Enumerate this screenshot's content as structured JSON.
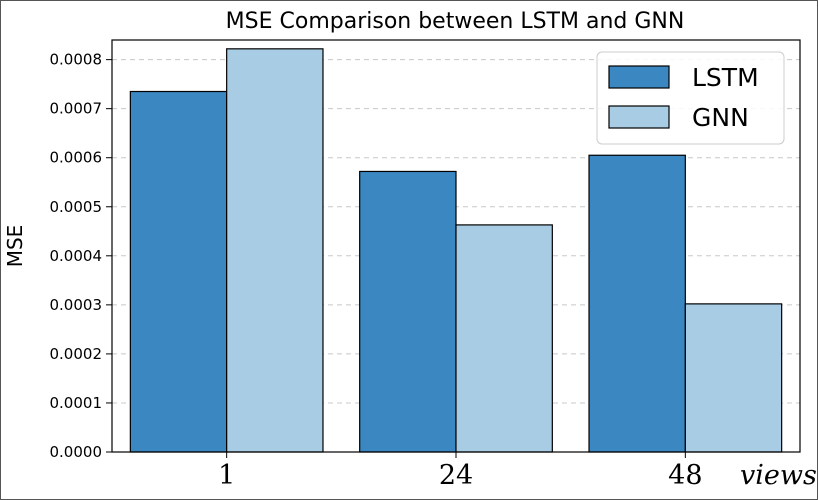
{
  "chart_data": {
    "type": "bar",
    "title": "MSE Comparison between LSTM and GNN",
    "xlabel": "views",
    "ylabel": "MSE",
    "categories": [
      "1",
      "24",
      "48"
    ],
    "series": [
      {
        "name": "LSTM",
        "color": "#3a87c2",
        "values": [
          0.000735,
          0.000572,
          0.000605
        ]
      },
      {
        "name": "GNN",
        "color": "#a8cce4",
        "values": [
          0.000822,
          0.000463,
          0.000302
        ]
      }
    ],
    "ylim": [
      0,
      0.00084
    ],
    "yticks": [
      "0.0000",
      "0.0001",
      "0.0002",
      "0.0003",
      "0.0004",
      "0.0005",
      "0.0006",
      "0.0007",
      "0.0008"
    ],
    "grid": true,
    "legend_position": "top-right"
  }
}
